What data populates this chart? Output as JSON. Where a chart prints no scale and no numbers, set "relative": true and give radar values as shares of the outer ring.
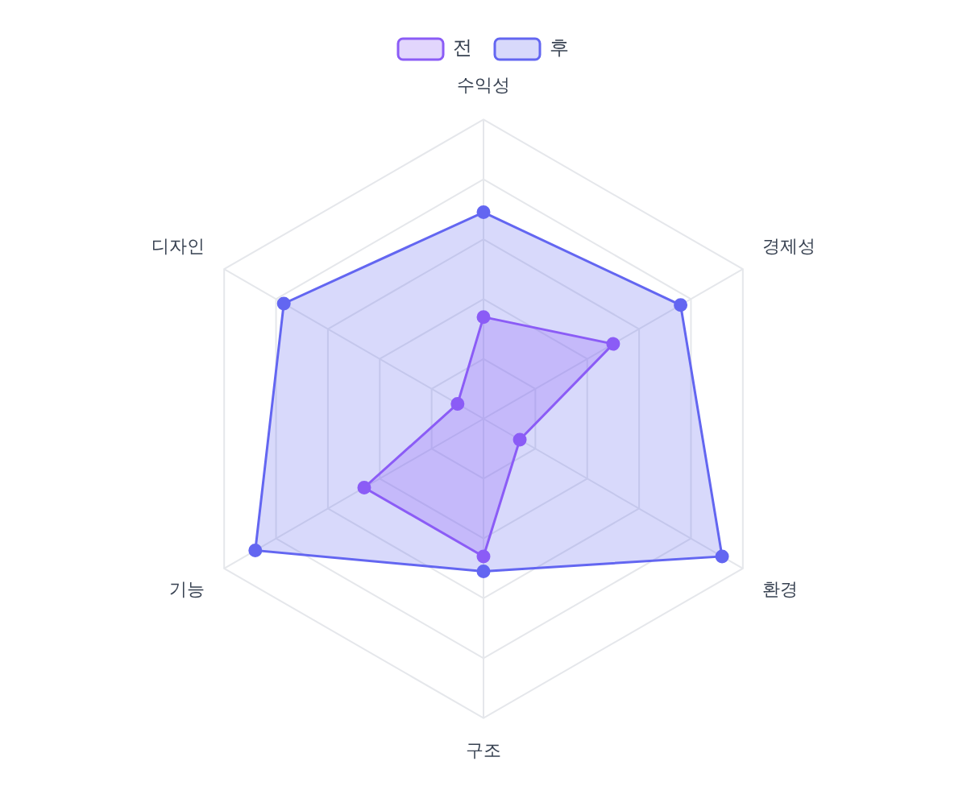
{
  "chart_data": {
    "type": "radar",
    "categories": [
      "수익성",
      "경제성",
      "환경",
      "구조",
      "기능",
      "디자인"
    ],
    "series": [
      {
        "name": "전",
        "color": "#8b5cf6",
        "values": [
          0.34,
          0.5,
          0.14,
          0.46,
          0.46,
          0.1
        ]
      },
      {
        "name": "후",
        "color": "#6366f1",
        "values": [
          0.69,
          0.76,
          0.92,
          0.51,
          0.88,
          0.77
        ]
      }
    ],
    "relative": true,
    "legend": "top",
    "grid": true
  }
}
